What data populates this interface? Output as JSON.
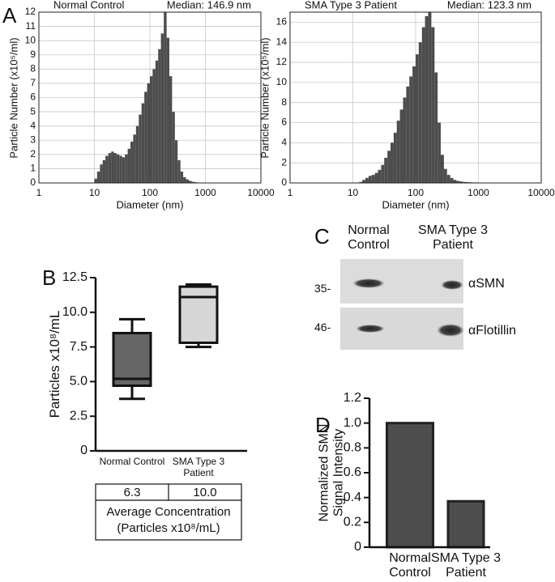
{
  "panels": [
    "A",
    "B",
    "C",
    "D"
  ],
  "chart_data": [
    {
      "type": "histogram",
      "title": "Normal Control",
      "subtitle": "Median: 146.9 nm",
      "x_label": "Diameter (nm)",
      "y_label": "Particle Number (x10⁵/ml)",
      "xscale": "log",
      "xlim": [
        1,
        10000
      ],
      "xticks": [
        1,
        10,
        100,
        1000,
        10000
      ],
      "ylim": [
        0,
        12
      ],
      "yticks": [
        0,
        1,
        2,
        3,
        4,
        5,
        6,
        7,
        8,
        9,
        10,
        11,
        12
      ],
      "grid": true,
      "color": "#4d4d4d",
      "bins": [
        10,
        11.2,
        12.6,
        14.1,
        15.8,
        17.8,
        20,
        22.4,
        25.1,
        28.2,
        31.6,
        35.5,
        39.8,
        44.7,
        50.1,
        56.2,
        63.1,
        70.8,
        79.4,
        89.1,
        100,
        112,
        126,
        141,
        158,
        178,
        200,
        224,
        251,
        282,
        316,
        355,
        398,
        447,
        501,
        562,
        631,
        708,
        794,
        891,
        1000
      ],
      "counts": [
        0.3,
        0.8,
        1.3,
        1.6,
        1.9,
        2.1,
        2.2,
        2.1,
        2.0,
        1.9,
        1.8,
        2.0,
        2.4,
        2.9,
        3.4,
        4.0,
        4.8,
        5.6,
        6.4,
        7.0,
        7.5,
        8.0,
        8.6,
        9.4,
        10.5,
        12,
        10.2,
        7.5,
        5.0,
        3.0,
        1.6,
        0.8,
        0.4,
        0.25,
        0.15,
        0.08,
        0.05,
        0,
        0,
        0
      ]
    },
    {
      "type": "histogram",
      "title": "SMA Type 3 Patient",
      "subtitle": "Median: 123.3 nm",
      "x_label": "Diameter (nm)",
      "y_label": "Particle Number (x10⁵/ml)",
      "xscale": "log",
      "xlim": [
        1,
        10000
      ],
      "xticks": [
        1,
        10,
        100,
        1000,
        10000
      ],
      "ylim": [
        0,
        17
      ],
      "yticks": [
        0,
        2,
        4,
        6,
        8,
        10,
        12,
        14,
        16
      ],
      "grid": true,
      "color": "#4d4d4d",
      "bins": [
        10,
        11.2,
        12.6,
        14.1,
        15.8,
        17.8,
        20,
        22.4,
        25.1,
        28.2,
        31.6,
        35.5,
        39.8,
        44.7,
        50.1,
        56.2,
        63.1,
        70.8,
        79.4,
        89.1,
        100,
        112,
        126,
        141,
        158,
        178,
        200,
        224,
        251,
        282,
        316,
        355,
        398,
        447,
        501,
        562,
        631,
        708,
        794,
        891,
        1000
      ],
      "counts": [
        0,
        0,
        0.1,
        0.3,
        0.5,
        0.7,
        0.8,
        1.0,
        1.3,
        1.8,
        2.5,
        3.2,
        4.0,
        5.0,
        6.2,
        7.3,
        8.5,
        9.6,
        10.6,
        11.6,
        12.8,
        14,
        15.5,
        16.6,
        17,
        15.5,
        11,
        6,
        2.8,
        1.4,
        0.8,
        0.5,
        0.3,
        0.2,
        0.15,
        0.1,
        0.08,
        0.06,
        0.05,
        0.05
      ]
    },
    {
      "type": "box",
      "y_label": "Particles x10⁸/mL",
      "categories": [
        "Normal Control",
        "SMA Type 3 Patient"
      ],
      "boxes": [
        {
          "min": 3.75,
          "q1": 4.7,
          "median": 5.2,
          "q3": 8.5,
          "max": 9.5,
          "color": "#666666"
        },
        {
          "min": 7.5,
          "q1": 7.8,
          "median": 11.1,
          "q3": 11.85,
          "max": 12.0,
          "color": "#d6d6d6"
        }
      ],
      "ylim": [
        0,
        12.5
      ],
      "yticks": [
        0,
        2.5,
        {
          "value": 5,
          "label": "5.0"
        },
        7.5,
        {
          "value": 10,
          "label": "10.0"
        },
        12.5
      ]
    },
    {
      "type": "bar",
      "y_label": "Normalized SMN Signal Intensity",
      "categories": [
        "Normal Control",
        "SMA Type 3 Patient"
      ],
      "values": [
        1.0,
        0.37
      ],
      "color": "#4d4d4d",
      "ylim": [
        0,
        1.2
      ],
      "yticks": [
        0,
        0.2,
        0.4,
        0.6,
        0.8,
        {
          "value": 1,
          "label": "1.0"
        },
        1.2
      ]
    }
  ],
  "table": {
    "cells": [
      "6.3",
      "10.0"
    ],
    "caption": "Average Concentration (Particles x10⁸/mL)"
  },
  "blot": {
    "columns": [
      "Normal Control",
      "SMA Type 3 Patient"
    ],
    "rows": [
      {
        "marker": "35-",
        "label": "αSMN"
      },
      {
        "marker": "46-",
        "label": "αFlotillin"
      }
    ]
  }
}
